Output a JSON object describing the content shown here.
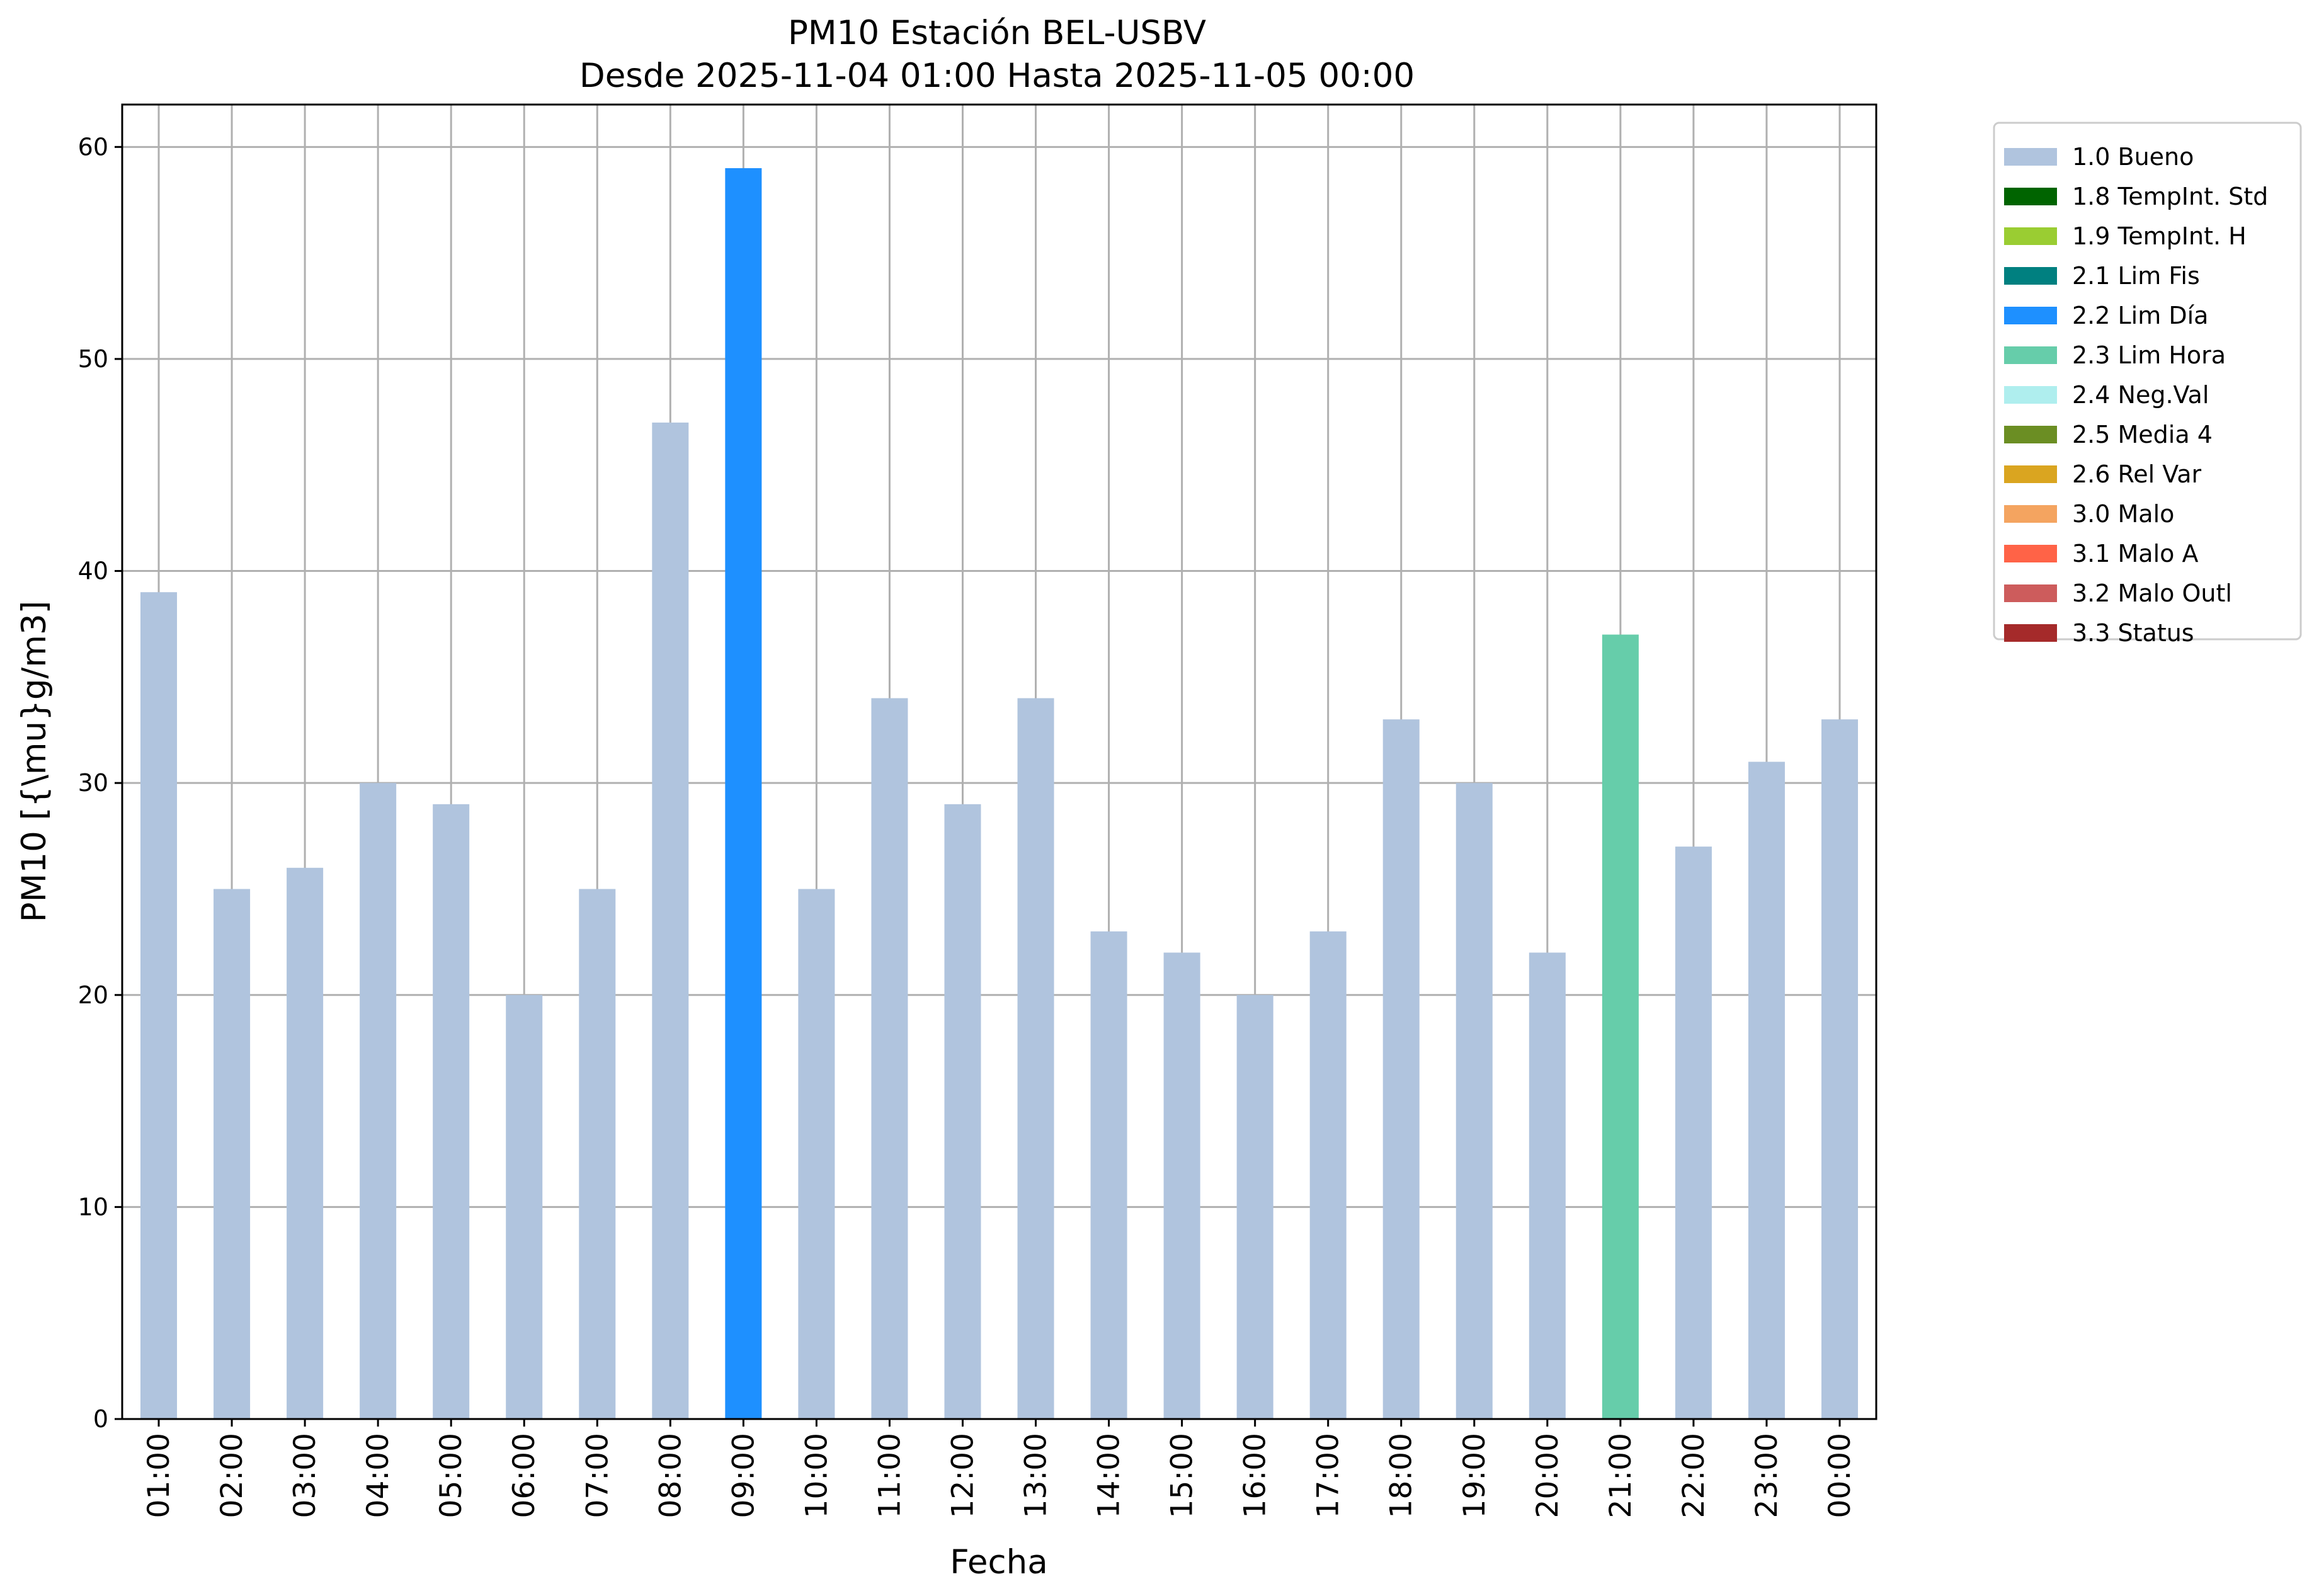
{
  "chart_data": {
    "type": "bar",
    "title": "PM10 Estación BEL-USBV",
    "subtitle": "Desde 2025-11-04 01:00 Hasta 2025-11-05 00:00",
    "xlabel": "Fecha",
    "ylabel": "PM10 [{\\mu}g/m3]",
    "ylim": [
      0,
      62
    ],
    "yticks": [
      0,
      10,
      20,
      30,
      40,
      50,
      60
    ],
    "grid": true,
    "legend_position": "outside-right",
    "categories": [
      "01:00",
      "02:00",
      "03:00",
      "04:00",
      "05:00",
      "06:00",
      "07:00",
      "08:00",
      "09:00",
      "10:00",
      "11:00",
      "12:00",
      "13:00",
      "14:00",
      "15:00",
      "16:00",
      "17:00",
      "18:00",
      "19:00",
      "20:00",
      "21:00",
      "22:00",
      "23:00",
      "00:00"
    ],
    "values": [
      39,
      25,
      26,
      30,
      29,
      20,
      25,
      47,
      59,
      25,
      34,
      29,
      34,
      23,
      22,
      20,
      23,
      33,
      30,
      22,
      37,
      27,
      31,
      33
    ],
    "flags": [
      "1.0 Bueno",
      "1.0 Bueno",
      "1.0 Bueno",
      "1.0 Bueno",
      "1.0 Bueno",
      "1.0 Bueno",
      "1.0 Bueno",
      "1.0 Bueno",
      "2.2 Lim Día",
      "1.0 Bueno",
      "1.0 Bueno",
      "1.0 Bueno",
      "1.0 Bueno",
      "1.0 Bueno",
      "1.0 Bueno",
      "1.0 Bueno",
      "1.0 Bueno",
      "1.0 Bueno",
      "1.0 Bueno",
      "1.0 Bueno",
      "2.3 Lim Hora",
      "1.0 Bueno",
      "1.0 Bueno",
      "1.0 Bueno"
    ],
    "legend": [
      {
        "label": "1.0 Bueno",
        "color": "#b0c4de"
      },
      {
        "label": "1.8 TempInt. Std",
        "color": "#006400"
      },
      {
        "label": "1.9 TempInt. H",
        "color": "#9acd32"
      },
      {
        "label": "2.1 Lim Fis",
        "color": "#008080"
      },
      {
        "label": "2.2 Lim Día",
        "color": "#1e90ff"
      },
      {
        "label": "2.3 Lim Hora",
        "color": "#66cdaa"
      },
      {
        "label": "2.4 Neg.Val",
        "color": "#afeeee"
      },
      {
        "label": "2.5 Media 4",
        "color": "#6b8e23"
      },
      {
        "label": "2.6 Rel Var",
        "color": "#daa520"
      },
      {
        "label": "3.0 Malo",
        "color": "#f4a460"
      },
      {
        "label": "3.1 Malo A",
        "color": "#ff6347"
      },
      {
        "label": "3.2 Malo Outl",
        "color": "#cd5c5c"
      },
      {
        "label": "3.3 Status",
        "color": "#a52a2a"
      }
    ]
  }
}
